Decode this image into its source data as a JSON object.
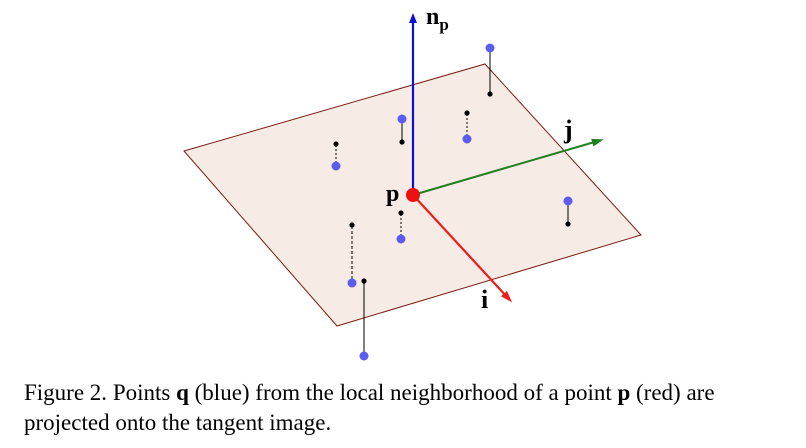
{
  "figure": {
    "axis_labels": {
      "normal": "n",
      "normal_subscript": "p",
      "j": "j",
      "i": "i",
      "point": "p"
    },
    "colors": {
      "plane_fill": "#f7ebe6",
      "plane_stroke": "#7a1e14",
      "normal_axis": "#1010d0",
      "j_axis": "#208020",
      "i_axis": "#ee1c1c",
      "neighbor_point": "#5c5cf0",
      "projected_point": "#000000",
      "center_point": "#ee1111"
    }
  },
  "caption": {
    "figure_number": "Figure 2.",
    "part1": " Points ",
    "q": "q",
    "part2": " (blue) from the local neighborhood of a point ",
    "p": "p",
    "part3": " (red) are projected onto the tangent image."
  }
}
